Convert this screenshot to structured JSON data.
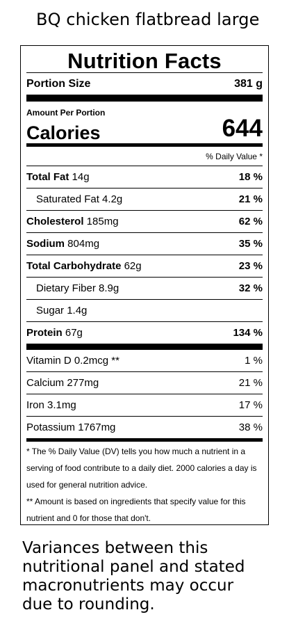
{
  "header_title": "BQ chicken flatbread large",
  "label": {
    "title": "Nutrition Facts",
    "portion_label": "Portion Size",
    "portion_value": "381 g",
    "amount_per_portion": "Amount Per Portion",
    "calories_label": "Calories",
    "calories_value": "644",
    "daily_value_header": "% Daily Value *",
    "nutrients": [
      {
        "name": "Total Fat",
        "amount": " 14g",
        "pct": "18 %"
      },
      {
        "name": "",
        "amount": "Saturated Fat 4.2g",
        "pct": "21 %"
      },
      {
        "name": "Cholesterol",
        "amount": " 185mg",
        "pct": "62 %"
      },
      {
        "name": "Sodium",
        "amount": " 804mg",
        "pct": "35 %"
      },
      {
        "name": "Total Carbohydrate",
        "amount": " 62g",
        "pct": "23 %"
      },
      {
        "name": "",
        "amount": "Dietary Fiber 8.9g",
        "pct": "32 %"
      },
      {
        "name": "",
        "amount": "Sugar 1.4g",
        "pct": ""
      },
      {
        "name": "Protein",
        "amount": " 67g",
        "pct": "134 %"
      }
    ],
    "vitamins": [
      {
        "label": "Vitamin D 0.2mcg **",
        "pct": "1 %"
      },
      {
        "label": "Calcium 277mg",
        "pct": "21 %"
      },
      {
        "label": "Iron 3.1mg",
        "pct": "17 %"
      },
      {
        "label": "Potassium 1767mg",
        "pct": "38 %"
      }
    ],
    "footnote_1": "* The % Daily Value (DV) tells you how much a nutrient in a serving of food contribute to a daily diet. 2000 calories a day is used for general nutrition advice.",
    "footnote_2": "** Amount is based on ingredients that specify value for this nutrient and 0 for those that don't."
  },
  "variance_note": "Variances between this nutritional panel and stated macronutrients may occur due to rounding."
}
